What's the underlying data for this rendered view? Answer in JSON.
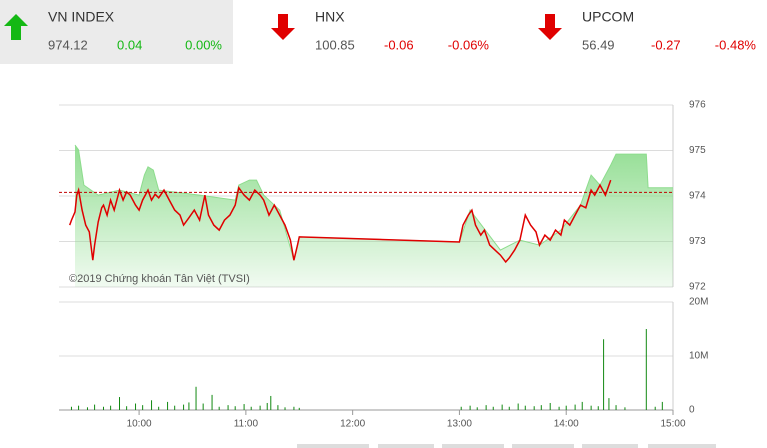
{
  "header": {
    "indices": [
      {
        "name": "VN INDEX",
        "value": "974.12",
        "change": "0.04",
        "percent": "0.00%",
        "direction": "up",
        "selected": true
      },
      {
        "name": "HNX",
        "value": "100.85",
        "change": "-0.06",
        "percent": "-0.06%",
        "direction": "down",
        "selected": false
      },
      {
        "name": "UPCOM",
        "value": "56.49",
        "change": "-0.27",
        "percent": "-0.48%",
        "direction": "down",
        "selected": false
      }
    ]
  },
  "chart_data": [
    {
      "type": "line",
      "annotation": "©2019 Chứng khoán Tân Việt (TVSI)",
      "xlim": [
        555,
        900
      ],
      "ylim": [
        972,
        976
      ],
      "yticks": [
        972,
        973,
        974,
        975,
        976
      ],
      "grid": true,
      "reference_line": 974.08,
      "reference_color": "#c00000",
      "series": [
        {
          "color": "#8ddc8d",
          "area": true,
          "x": [
            564,
            566,
            569,
            577,
            589,
            600,
            603,
            605,
            608,
            611,
            634,
            654,
            656,
            662,
            666,
            670,
            679,
            687,
            690,
            780,
            786,
            803,
            814,
            825,
            837,
            848,
            854,
            859,
            865,
            868,
            885,
            886,
            900
          ],
          "values": [
            975.12,
            975.01,
            974.24,
            974.02,
            974.13,
            974.02,
            974.46,
            974.64,
            974.57,
            974.13,
            974.02,
            973.91,
            974.24,
            974.35,
            974.35,
            974.02,
            973.69,
            972.59,
            973.1,
            972.99,
            973.69,
            972.81,
            973.03,
            972.92,
            973.25,
            973.8,
            974.46,
            974.24,
            974.68,
            974.92,
            974.92,
            974.18,
            974.18
          ]
        },
        {
          "color": "#e00000",
          "area": false,
          "x": [
            561,
            562,
            564,
            565,
            566,
            568,
            570,
            572,
            574,
            575,
            577,
            579,
            580,
            582,
            584,
            586,
            589,
            591,
            593,
            595,
            598,
            600,
            602,
            605,
            607,
            609,
            611,
            614,
            617,
            620,
            623,
            625,
            628,
            631,
            634,
            637,
            639,
            642,
            645,
            648,
            651,
            654,
            656,
            659,
            662,
            665,
            668,
            670,
            673,
            676,
            679,
            682,
            685,
            687,
            689,
            690,
            780,
            782,
            785,
            787,
            789,
            792,
            794,
            797,
            800,
            803,
            806,
            808,
            811,
            814,
            817,
            820,
            823,
            825,
            828,
            831,
            834,
            837,
            839,
            842,
            845,
            848,
            851,
            854,
            856,
            859,
            862,
            865
          ],
          "values": [
            973.36,
            973.47,
            973.65,
            974.02,
            974.13,
            973.69,
            973.36,
            973.21,
            972.59,
            972.92,
            973.43,
            973.74,
            973.8,
            973.58,
            973.91,
            973.69,
            974.13,
            973.91,
            974.09,
            974.02,
            973.8,
            973.69,
            973.91,
            974.13,
            973.91,
            974.04,
            973.96,
            974.13,
            973.91,
            973.69,
            973.58,
            973.36,
            973.52,
            973.69,
            973.47,
            974.02,
            973.58,
            973.36,
            973.25,
            973.47,
            973.58,
            973.8,
            974.18,
            974.02,
            973.91,
            974.13,
            974.02,
            973.91,
            973.58,
            973.8,
            973.58,
            973.36,
            973.03,
            972.59,
            972.92,
            973.1,
            972.99,
            973.36,
            973.58,
            973.69,
            973.36,
            973.14,
            973.25,
            972.92,
            972.81,
            972.7,
            972.55,
            972.64,
            972.81,
            973.03,
            973.58,
            973.36,
            973.21,
            972.92,
            973.14,
            973.03,
            973.25,
            973.14,
            973.47,
            973.36,
            973.58,
            973.8,
            973.74,
            974.13,
            974.02,
            974.24,
            974.02,
            974.35
          ]
        }
      ]
    },
    {
      "type": "bar",
      "color": "#118811",
      "xlim": [
        555,
        900
      ],
      "ylim": [
        0,
        20000000
      ],
      "yticks": [
        0,
        {
          "value": 10000000,
          "label": "10M"
        },
        {
          "value": 20000000,
          "label": "20M"
        }
      ],
      "xticks": [
        {
          "value": 600,
          "label": "10:00"
        },
        {
          "value": 660,
          "label": "11:00"
        },
        {
          "value": 720,
          "label": "12:00"
        },
        {
          "value": 780,
          "label": "13:00"
        },
        {
          "value": 840,
          "label": "14:00"
        },
        {
          "value": 900,
          "label": "15:00"
        }
      ],
      "x": [
        562,
        566,
        571,
        575,
        580,
        584,
        589,
        593,
        598,
        602,
        607,
        611,
        616,
        620,
        625,
        628,
        632,
        636,
        641,
        645,
        650,
        654,
        659,
        663,
        668,
        672,
        674,
        678,
        682,
        687,
        690,
        781,
        786,
        790,
        795,
        799,
        804,
        808,
        813,
        817,
        822,
        826,
        831,
        836,
        840,
        845,
        849,
        854,
        858,
        861,
        864,
        868,
        873,
        885,
        890,
        894
      ],
      "values": [
        600000,
        800000,
        500000,
        1000000,
        600000,
        800000,
        2400000,
        700000,
        1200000,
        900000,
        1800000,
        600000,
        1500000,
        800000,
        1000000,
        1400000,
        4300000,
        1200000,
        2800000,
        600000,
        900000,
        700000,
        1100000,
        600000,
        800000,
        1300000,
        2600000,
        900000,
        500000,
        600000,
        400000,
        600000,
        800000,
        500000,
        900000,
        600000,
        1000000,
        600000,
        1200000,
        800000,
        700000,
        900000,
        1300000,
        600000,
        800000,
        1000000,
        1500000,
        800000,
        700000,
        13100000,
        2200000,
        900000,
        500000,
        15000000,
        600000,
        1500000
      ]
    }
  ]
}
